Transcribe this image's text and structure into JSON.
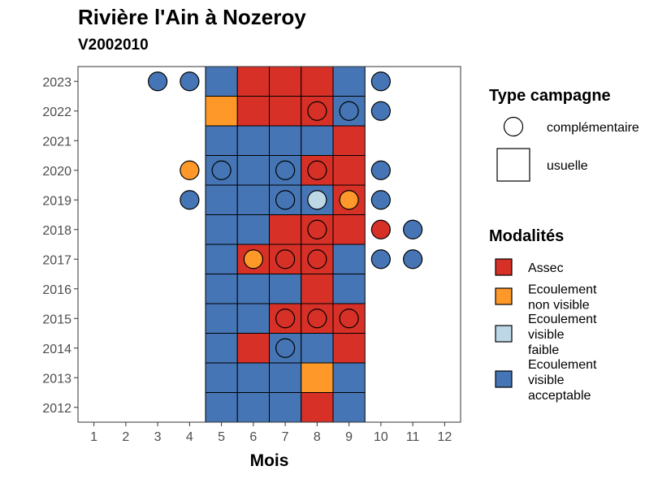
{
  "chart_data": {
    "type": "heatmap",
    "title": "Rivière l'Ain à Nozeroy",
    "subtitle": "V2002010",
    "xlabel": "Mois",
    "ylabel": "",
    "x_ticks": [
      "1",
      "2",
      "3",
      "4",
      "5",
      "6",
      "7",
      "8",
      "9",
      "10",
      "11",
      "12"
    ],
    "y_ticks": [
      "2012",
      "2013",
      "2014",
      "2015",
      "2016",
      "2017",
      "2018",
      "2019",
      "2020",
      "2021",
      "2022",
      "2023"
    ],
    "xlim": [
      0.5,
      12.5
    ],
    "ylim": [
      2011.5,
      2023.5
    ],
    "grid": false,
    "legend_position": "right",
    "colors": {
      "Assec": "#d73027",
      "Ecoulement non visible": "#fe9929",
      "Ecoulement visible faible": "#bdd7e7",
      "Ecoulement visible acceptable": "#4575b4"
    },
    "legend_campagne": {
      "title": "Type campagne",
      "items": [
        {
          "label": "complémentaire",
          "shape": "circle"
        },
        {
          "label": "usuelle",
          "shape": "square"
        }
      ]
    },
    "legend_modalites": {
      "title": "Modalités",
      "items": [
        {
          "key": "Assec",
          "lines": [
            "Assec"
          ]
        },
        {
          "key": "Ecoulement non visible",
          "lines": [
            "Ecoulement",
            "non visible"
          ]
        },
        {
          "key": "Ecoulement visible faible",
          "lines": [
            "Ecoulement",
            "visible",
            "faible"
          ]
        },
        {
          "key": "Ecoulement visible acceptable",
          "lines": [
            "Ecoulement",
            "visible",
            "acceptable"
          ]
        }
      ]
    },
    "usuelle": [
      {
        "year": 2023,
        "month": 5,
        "value": "Ecoulement visible acceptable"
      },
      {
        "year": 2023,
        "month": 6,
        "value": "Assec"
      },
      {
        "year": 2023,
        "month": 7,
        "value": "Assec"
      },
      {
        "year": 2023,
        "month": 8,
        "value": "Assec"
      },
      {
        "year": 2023,
        "month": 9,
        "value": "Ecoulement visible acceptable"
      },
      {
        "year": 2022,
        "month": 5,
        "value": "Ecoulement non visible"
      },
      {
        "year": 2022,
        "month": 6,
        "value": "Assec"
      },
      {
        "year": 2022,
        "month": 7,
        "value": "Assec"
      },
      {
        "year": 2022,
        "month": 8,
        "value": "Assec"
      },
      {
        "year": 2022,
        "month": 9,
        "value": "Ecoulement visible acceptable"
      },
      {
        "year": 2021,
        "month": 5,
        "value": "Ecoulement visible acceptable"
      },
      {
        "year": 2021,
        "month": 6,
        "value": "Ecoulement visible acceptable"
      },
      {
        "year": 2021,
        "month": 7,
        "value": "Ecoulement visible acceptable"
      },
      {
        "year": 2021,
        "month": 8,
        "value": "Ecoulement visible acceptable"
      },
      {
        "year": 2021,
        "month": 9,
        "value": "Assec"
      },
      {
        "year": 2020,
        "month": 5,
        "value": "Ecoulement visible acceptable"
      },
      {
        "year": 2020,
        "month": 6,
        "value": "Ecoulement visible acceptable"
      },
      {
        "year": 2020,
        "month": 7,
        "value": "Ecoulement visible acceptable"
      },
      {
        "year": 2020,
        "month": 8,
        "value": "Assec"
      },
      {
        "year": 2020,
        "month": 9,
        "value": "Assec"
      },
      {
        "year": 2019,
        "month": 5,
        "value": "Ecoulement visible acceptable"
      },
      {
        "year": 2019,
        "month": 6,
        "value": "Ecoulement visible acceptable"
      },
      {
        "year": 2019,
        "month": 7,
        "value": "Ecoulement visible acceptable"
      },
      {
        "year": 2019,
        "month": 8,
        "value": "Ecoulement visible acceptable"
      },
      {
        "year": 2019,
        "month": 9,
        "value": "Assec"
      },
      {
        "year": 2018,
        "month": 5,
        "value": "Ecoulement visible acceptable"
      },
      {
        "year": 2018,
        "month": 6,
        "value": "Ecoulement visible acceptable"
      },
      {
        "year": 2018,
        "month": 7,
        "value": "Assec"
      },
      {
        "year": 2018,
        "month": 8,
        "value": "Assec"
      },
      {
        "year": 2018,
        "month": 9,
        "value": "Assec"
      },
      {
        "year": 2017,
        "month": 5,
        "value": "Ecoulement visible acceptable"
      },
      {
        "year": 2017,
        "month": 6,
        "value": "Assec"
      },
      {
        "year": 2017,
        "month": 7,
        "value": "Assec"
      },
      {
        "year": 2017,
        "month": 8,
        "value": "Assec"
      },
      {
        "year": 2017,
        "month": 9,
        "value": "Ecoulement visible acceptable"
      },
      {
        "year": 2016,
        "month": 5,
        "value": "Ecoulement visible acceptable"
      },
      {
        "year": 2016,
        "month": 6,
        "value": "Ecoulement visible acceptable"
      },
      {
        "year": 2016,
        "month": 7,
        "value": "Ecoulement visible acceptable"
      },
      {
        "year": 2016,
        "month": 8,
        "value": "Assec"
      },
      {
        "year": 2016,
        "month": 9,
        "value": "Ecoulement visible acceptable"
      },
      {
        "year": 2015,
        "month": 5,
        "value": "Ecoulement visible acceptable"
      },
      {
        "year": 2015,
        "month": 6,
        "value": "Ecoulement visible acceptable"
      },
      {
        "year": 2015,
        "month": 7,
        "value": "Assec"
      },
      {
        "year": 2015,
        "month": 8,
        "value": "Assec"
      },
      {
        "year": 2015,
        "month": 9,
        "value": "Assec"
      },
      {
        "year": 2014,
        "month": 5,
        "value": "Ecoulement visible acceptable"
      },
      {
        "year": 2014,
        "month": 6,
        "value": "Assec"
      },
      {
        "year": 2014,
        "month": 7,
        "value": "Ecoulement visible acceptable"
      },
      {
        "year": 2014,
        "month": 8,
        "value": "Ecoulement visible acceptable"
      },
      {
        "year": 2014,
        "month": 9,
        "value": "Assec"
      },
      {
        "year": 2013,
        "month": 5,
        "value": "Ecoulement visible acceptable"
      },
      {
        "year": 2013,
        "month": 6,
        "value": "Ecoulement visible acceptable"
      },
      {
        "year": 2013,
        "month": 7,
        "value": "Ecoulement visible acceptable"
      },
      {
        "year": 2013,
        "month": 8,
        "value": "Ecoulement non visible"
      },
      {
        "year": 2013,
        "month": 9,
        "value": "Ecoulement visible acceptable"
      },
      {
        "year": 2012,
        "month": 5,
        "value": "Ecoulement visible acceptable"
      },
      {
        "year": 2012,
        "month": 6,
        "value": "Ecoulement visible acceptable"
      },
      {
        "year": 2012,
        "month": 7,
        "value": "Ecoulement visible acceptable"
      },
      {
        "year": 2012,
        "month": 8,
        "value": "Assec"
      },
      {
        "year": 2012,
        "month": 9,
        "value": "Ecoulement visible acceptable"
      }
    ],
    "complementaire": [
      {
        "year": 2023,
        "month": 3,
        "value": "Ecoulement visible acceptable"
      },
      {
        "year": 2023,
        "month": 4,
        "value": "Ecoulement visible acceptable"
      },
      {
        "year": 2023,
        "month": 10,
        "value": "Ecoulement visible acceptable"
      },
      {
        "year": 2022,
        "month": 8,
        "value": "Assec"
      },
      {
        "year": 2022,
        "month": 9,
        "value": "Ecoulement visible acceptable"
      },
      {
        "year": 2022,
        "month": 10,
        "value": "Ecoulement visible acceptable"
      },
      {
        "year": 2020,
        "month": 4,
        "value": "Ecoulement non visible"
      },
      {
        "year": 2020,
        "month": 5,
        "value": "Ecoulement visible acceptable"
      },
      {
        "year": 2020,
        "month": 7,
        "value": "Ecoulement visible acceptable"
      },
      {
        "year": 2020,
        "month": 8,
        "value": "Assec"
      },
      {
        "year": 2020,
        "month": 10,
        "value": "Ecoulement visible acceptable"
      },
      {
        "year": 2019,
        "month": 4,
        "value": "Ecoulement visible acceptable"
      },
      {
        "year": 2019,
        "month": 7,
        "value": "Ecoulement visible acceptable"
      },
      {
        "year": 2019,
        "month": 8,
        "value": "Ecoulement visible faible"
      },
      {
        "year": 2019,
        "month": 9,
        "value": "Ecoulement non visible"
      },
      {
        "year": 2019,
        "month": 10,
        "value": "Ecoulement visible acceptable"
      },
      {
        "year": 2018,
        "month": 8,
        "value": "Assec"
      },
      {
        "year": 2018,
        "month": 10,
        "value": "Assec"
      },
      {
        "year": 2018,
        "month": 11,
        "value": "Ecoulement visible acceptable"
      },
      {
        "year": 2017,
        "month": 6,
        "value": "Ecoulement non visible"
      },
      {
        "year": 2017,
        "month": 7,
        "value": "Assec"
      },
      {
        "year": 2017,
        "month": 8,
        "value": "Assec"
      },
      {
        "year": 2017,
        "month": 10,
        "value": "Ecoulement visible acceptable"
      },
      {
        "year": 2017,
        "month": 11,
        "value": "Ecoulement visible acceptable"
      },
      {
        "year": 2015,
        "month": 7,
        "value": "Assec"
      },
      {
        "year": 2015,
        "month": 8,
        "value": "Assec"
      },
      {
        "year": 2015,
        "month": 9,
        "value": "Assec"
      },
      {
        "year": 2014,
        "month": 7,
        "value": "Ecoulement visible acceptable"
      }
    ]
  }
}
